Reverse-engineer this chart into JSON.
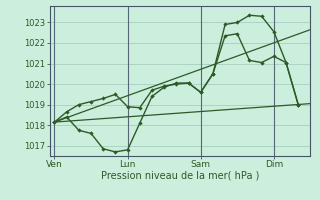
{
  "bg_color": "#cceedd",
  "grid_color": "#aad4c4",
  "line_color": "#2d5a27",
  "vline_color": "#556677",
  "xlabel": "Pression niveau de la mer( hPa )",
  "ylim": [
    1016.5,
    1023.8
  ],
  "yticks": [
    1017,
    1018,
    1019,
    1020,
    1021,
    1022,
    1023
  ],
  "xtick_labels": [
    "Ven",
    "Lun",
    "Sam",
    "Dim"
  ],
  "xtick_positions": [
    0,
    3,
    6,
    9
  ],
  "vline_positions": [
    0,
    3,
    6,
    9
  ],
  "xlim": [
    -0.2,
    10.5
  ],
  "series1_x": [
    0,
    0.5,
    1.0,
    1.5,
    2.0,
    2.5,
    3.0,
    3.5,
    4.0,
    4.5,
    5.0,
    5.5,
    6.0,
    6.5,
    7.0,
    7.5,
    8.0,
    8.5,
    9.0,
    9.5,
    10.0
  ],
  "series1_y": [
    1018.15,
    1018.65,
    1019.0,
    1019.15,
    1019.3,
    1019.5,
    1018.9,
    1018.85,
    1019.7,
    1019.9,
    1020.0,
    1020.05,
    1019.6,
    1020.5,
    1022.9,
    1023.0,
    1023.35,
    1023.3,
    1022.55,
    1021.05,
    1019.0
  ],
  "series2_x": [
    0,
    0.5,
    1.0,
    1.5,
    2.0,
    2.5,
    3.0,
    3.5,
    4.0,
    4.5,
    5.0,
    5.5,
    6.0,
    6.5,
    7.0,
    7.5,
    8.0,
    8.5,
    9.0,
    9.5,
    10.0
  ],
  "series2_y": [
    1018.15,
    1018.4,
    1017.75,
    1017.6,
    1016.85,
    1016.7,
    1016.8,
    1018.1,
    1019.4,
    1019.85,
    1020.05,
    1020.05,
    1019.6,
    1020.5,
    1022.35,
    1022.45,
    1021.15,
    1021.05,
    1021.35,
    1021.05,
    1019.0
  ],
  "series3_x": [
    0,
    10.5
  ],
  "series3_y": [
    1018.15,
    1019.05
  ],
  "series4_x": [
    0,
    10.5
  ],
  "series4_y": [
    1018.15,
    1022.65
  ]
}
